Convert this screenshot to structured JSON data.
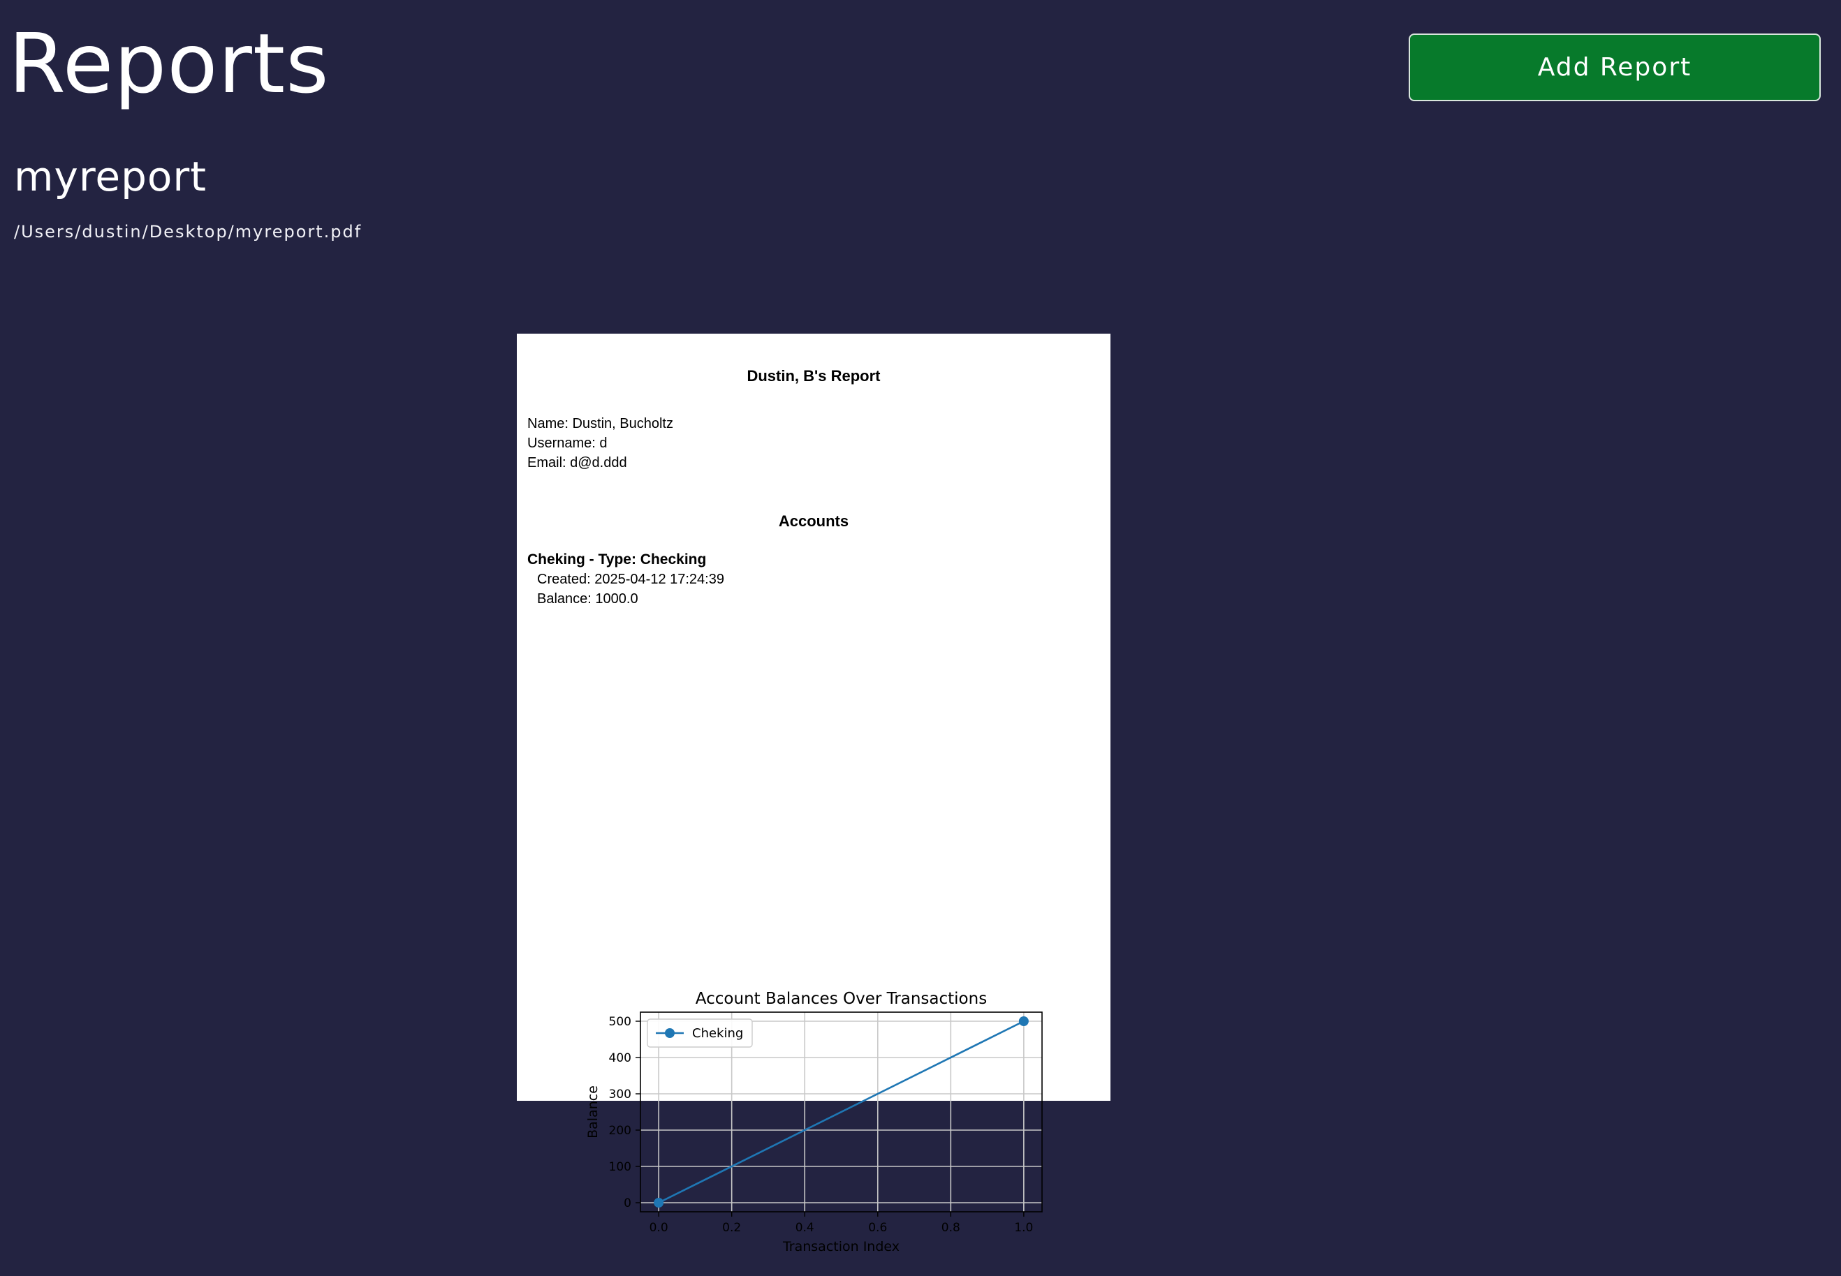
{
  "header": {
    "title": "Reports",
    "add_button_label": "Add Report"
  },
  "report": {
    "name": "myreport",
    "path": "/Users/dustin/Desktop/myreport.pdf"
  },
  "pdf": {
    "title": "Dustin, B's Report",
    "name_line": "Name: Dustin, Bucholtz",
    "username_line": "Username: d",
    "email_line": "Email: d@d.ddd",
    "accounts_heading": "Accounts",
    "account_heading": "Cheking - Type: Checking",
    "created_line": "Created: 2025-04-12 17:24:39",
    "balance_line": "Balance: 1000.0"
  },
  "chart_data": {
    "type": "line",
    "title": "Account Balances Over Transactions",
    "xlabel": "Transaction Index",
    "ylabel": "Balance",
    "xlim": [
      -0.05,
      1.05
    ],
    "ylim": [
      -25,
      525
    ],
    "xticks": [
      0.0,
      0.2,
      0.4,
      0.6,
      0.8,
      1.0
    ],
    "xtick_labels": [
      "0.0",
      "0.2",
      "0.4",
      "0.6",
      "0.8",
      "1.0"
    ],
    "yticks": [
      0,
      100,
      200,
      300,
      400,
      500
    ],
    "ytick_labels": [
      "0",
      "100",
      "200",
      "300",
      "400",
      "500"
    ],
    "grid": true,
    "legend": "top-left",
    "series": [
      {
        "name": "Cheking",
        "color": "#1f77b4",
        "x": [
          0,
          1
        ],
        "y": [
          0,
          500
        ]
      }
    ]
  }
}
